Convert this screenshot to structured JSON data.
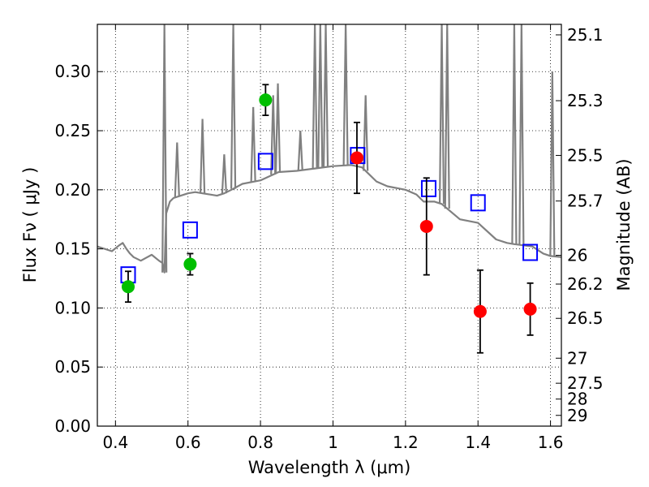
{
  "chart_data": {
    "type": "scatter",
    "title": "",
    "xlabel": "Wavelength  λ (μm)",
    "ylabel": "Flux  Fν  ( μJy )",
    "y2label": "Magnitude (AB)",
    "xlim": [
      0.35,
      1.63
    ],
    "ylim": [
      0.0,
      0.34
    ],
    "grid": true,
    "x_ticks": [
      0.4,
      0.6,
      0.8,
      1.0,
      1.2,
      1.4,
      1.6
    ],
    "x_tick_labels": [
      "0.4",
      "0.6",
      "0.8",
      "1",
      "1.2",
      "1.4",
      "1.6"
    ],
    "y_ticks": [
      0.0,
      0.05,
      0.1,
      0.15,
      0.2,
      0.25,
      0.3
    ],
    "y_tick_labels": [
      "0.00",
      "0.05",
      "0.10",
      "0.15",
      "0.20",
      "0.25",
      "0.30"
    ],
    "y2_ticks": [
      {
        "label": "25.1",
        "flux": 0.3311
      },
      {
        "label": "25.3",
        "flux": 0.2754
      },
      {
        "label": "25.5",
        "flux": 0.2291
      },
      {
        "label": "25.7",
        "flux": 0.1905
      },
      {
        "label": "26",
        "flux": 0.1445
      },
      {
        "label": "26.2",
        "flux": 0.1202
      },
      {
        "label": "26.5",
        "flux": 0.0912
      },
      {
        "label": "27",
        "flux": 0.0575
      },
      {
        "label": "27.5",
        "flux": 0.0363
      },
      {
        "label": "28",
        "flux": 0.0229
      },
      {
        "label": "29",
        "flux": 0.0091
      }
    ],
    "colors": {
      "green": "#00bf00",
      "red": "#ff0000",
      "model": "#808080",
      "box": "#0000ff",
      "error": "#000000"
    },
    "series": [
      {
        "name": "green-points",
        "kind": "points",
        "points": [
          {
            "x": 0.435,
            "y": 0.118,
            "err": 0.013
          },
          {
            "x": 0.606,
            "y": 0.137,
            "err": 0.009
          },
          {
            "x": 0.814,
            "y": 0.276,
            "err": 0.013
          }
        ]
      },
      {
        "name": "red-points",
        "kind": "points",
        "points": [
          {
            "x": 1.066,
            "y": 0.227,
            "err": 0.03
          },
          {
            "x": 1.258,
            "y": 0.169,
            "err": 0.041
          },
          {
            "x": 1.406,
            "y": 0.097,
            "err": 0.035
          },
          {
            "x": 1.544,
            "y": 0.099,
            "err": 0.022
          }
        ]
      },
      {
        "name": "model-boxes",
        "kind": "boxes",
        "points": [
          {
            "x": 0.435,
            "y": 0.128
          },
          {
            "x": 0.606,
            "y": 0.166
          },
          {
            "x": 0.814,
            "y": 0.224
          },
          {
            "x": 1.068,
            "y": 0.229
          },
          {
            "x": 1.264,
            "y": 0.201
          },
          {
            "x": 1.4,
            "y": 0.189
          },
          {
            "x": 1.544,
            "y": 0.147
          }
        ]
      },
      {
        "name": "model-spectrum",
        "kind": "line",
        "x": [
          0.35,
          0.37,
          0.39,
          0.41,
          0.42,
          0.43,
          0.44,
          0.45,
          0.47,
          0.5,
          0.52,
          0.53,
          0.535,
          0.54,
          0.55,
          0.56,
          0.58,
          0.6,
          0.62,
          0.64,
          0.66,
          0.68,
          0.7,
          0.72,
          0.75,
          0.8,
          0.85,
          0.9,
          0.95,
          1.0,
          1.05,
          1.08,
          1.1,
          1.12,
          1.15,
          1.2,
          1.23,
          1.25,
          1.28,
          1.3,
          1.35,
          1.4,
          1.45,
          1.48,
          1.5,
          1.55,
          1.58,
          1.6,
          1.63
        ],
        "y": [
          0.152,
          0.15,
          0.148,
          0.153,
          0.155,
          0.15,
          0.146,
          0.143,
          0.14,
          0.145,
          0.14,
          0.138,
          0.13,
          0.18,
          0.19,
          0.193,
          0.195,
          0.197,
          0.198,
          0.197,
          0.196,
          0.195,
          0.197,
          0.2,
          0.205,
          0.208,
          0.215,
          0.216,
          0.218,
          0.22,
          0.221,
          0.219,
          0.213,
          0.207,
          0.203,
          0.2,
          0.196,
          0.19,
          0.19,
          0.188,
          0.175,
          0.172,
          0.158,
          0.155,
          0.154,
          0.152,
          0.146,
          0.144,
          0.143
        ],
        "emission_lines": [
          {
            "x": 0.535,
            "y": 0.34
          },
          {
            "x": 0.57,
            "y": 0.24
          },
          {
            "x": 0.64,
            "y": 0.26
          },
          {
            "x": 0.7,
            "y": 0.23
          },
          {
            "x": 0.725,
            "y": 0.34
          },
          {
            "x": 0.78,
            "y": 0.27
          },
          {
            "x": 0.835,
            "y": 0.28
          },
          {
            "x": 0.848,
            "y": 0.29
          },
          {
            "x": 0.91,
            "y": 0.25
          },
          {
            "x": 0.95,
            "y": 0.34
          },
          {
            "x": 0.965,
            "y": 0.34
          },
          {
            "x": 0.98,
            "y": 0.34
          },
          {
            "x": 1.035,
            "y": 0.34
          },
          {
            "x": 1.09,
            "y": 0.28
          },
          {
            "x": 1.3,
            "y": 0.34
          },
          {
            "x": 1.315,
            "y": 0.34
          },
          {
            "x": 1.5,
            "y": 0.34
          },
          {
            "x": 1.52,
            "y": 0.34
          },
          {
            "x": 1.605,
            "y": 0.3
          }
        ]
      }
    ]
  }
}
